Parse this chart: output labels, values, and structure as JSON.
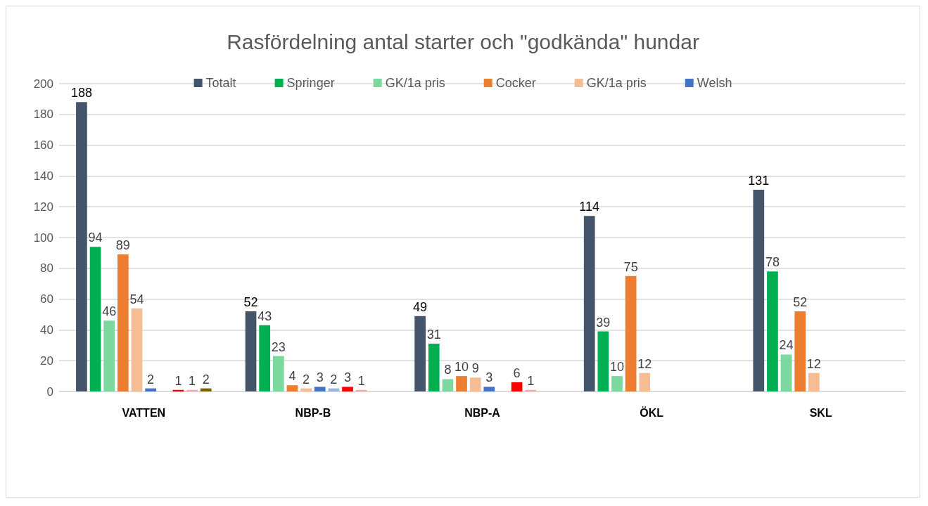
{
  "chart_data": {
    "type": "bar",
    "title": "Rasfördelning antal starter och \"godkända\" hundar",
    "categories": [
      "VATTEN",
      "NBP-B",
      "NBP-A",
      "ÖKL",
      "SKL"
    ],
    "series": [
      {
        "name": "Totalt",
        "color": "#44546a",
        "values": [
          188,
          52,
          49,
          114,
          131
        ]
      },
      {
        "name": "Springer",
        "color": "#00b050",
        "values": [
          94,
          43,
          31,
          39,
          78
        ]
      },
      {
        "name": "GK/1a pris",
        "color": "#7dd8a0",
        "values": [
          46,
          23,
          8,
          10,
          24
        ]
      },
      {
        "name": "Cocker",
        "color": "#ed7d31",
        "values": [
          89,
          4,
          10,
          75,
          52
        ]
      },
      {
        "name": "GK/1a pris",
        "color": "#f6bc93",
        "values": [
          54,
          2,
          9,
          12,
          12
        ]
      },
      {
        "name": "Welsh",
        "color": "#4472c4",
        "values": [
          2,
          3,
          3,
          null,
          null
        ]
      },
      {
        "color": "#9db5e3",
        "values": [
          null,
          2,
          null,
          null,
          null
        ]
      },
      {
        "color": "#ff0000",
        "values": [
          1,
          3,
          6,
          null,
          null
        ]
      },
      {
        "color": "#f5a3a3",
        "values": [
          1,
          1,
          1,
          null,
          null
        ]
      },
      {
        "color": "#7f6000",
        "values": [
          2,
          null,
          null,
          null,
          null
        ]
      }
    ],
    "ylim": [
      0,
      200
    ],
    "yticks": [
      0,
      20,
      40,
      60,
      80,
      100,
      120,
      140,
      160,
      180,
      200
    ],
    "grid": "y",
    "legend": "top",
    "data_labels": true
  }
}
